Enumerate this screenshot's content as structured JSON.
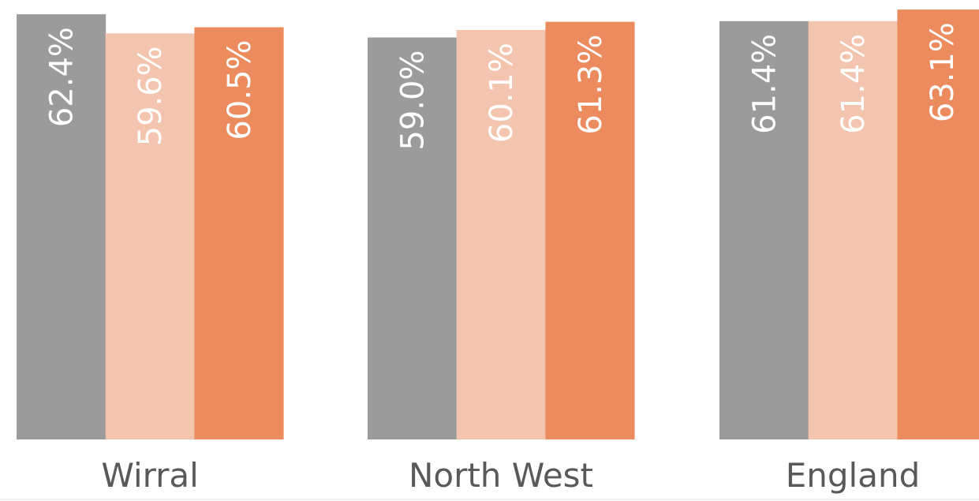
{
  "chart_data": {
    "type": "bar",
    "categories": [
      "Wirral",
      "North West",
      "England"
    ],
    "series": [
      {
        "values": [
          62.4,
          59.0,
          61.4
        ],
        "color": "#9b9b9b"
      },
      {
        "values": [
          59.6,
          60.1,
          61.4
        ],
        "color": "#f3c4ae"
      },
      {
        "values": [
          60.5,
          61.3,
          63.1
        ],
        "color": "#eb8b5e"
      }
    ],
    "value_labels": [
      [
        "62.4%",
        "59.6%",
        "60.5%"
      ],
      [
        "59.0%",
        "60.1%",
        "61.3%"
      ],
      [
        "61.4%",
        "61.4%",
        "63.1%"
      ]
    ],
    "title": "",
    "xlabel": "",
    "ylabel": "",
    "ylim": [
      0,
      64.5
    ],
    "grid": false,
    "legend": false
  }
}
